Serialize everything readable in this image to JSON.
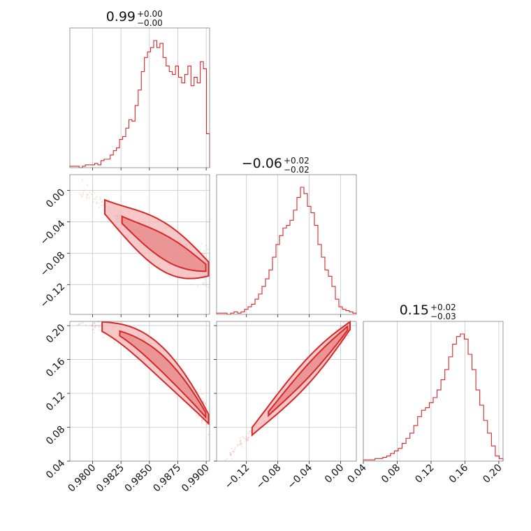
{
  "chart_data": {
    "type": "corner",
    "color": "#d62728",
    "parameters": [
      {
        "median": "0.99",
        "plus": "+0.00",
        "minus": "−0.00",
        "range": [
          0.978,
          0.9903
        ],
        "ticks": [
          0.98,
          0.9825,
          0.985,
          0.9875,
          0.99
        ],
        "tick_labels": [
          "0.9800",
          "0.9825",
          "0.9850",
          "0.9875",
          "0.9900"
        ]
      },
      {
        "median": "−0.06",
        "plus": "+0.02",
        "minus": "−0.02",
        "range": [
          -0.158,
          0.02
        ],
        "ticks": [
          -0.12,
          -0.08,
          -0.04,
          0.0
        ],
        "tick_labels": [
          "−0.12",
          "−0.08",
          "−0.04",
          "0.00"
        ]
      },
      {
        "median": "0.15",
        "plus": "+0.02",
        "minus": "−0.03",
        "range": [
          0.04,
          0.205
        ],
        "ticks": [
          0.04,
          0.08,
          0.12,
          0.16,
          0.2
        ],
        "tick_labels": [
          "0.04",
          "0.08",
          "0.12",
          "0.16",
          "0.20"
        ]
      }
    ],
    "histograms": [
      {
        "counts": [
          1,
          1,
          1,
          0,
          1,
          2,
          2,
          2,
          3,
          2,
          5,
          6,
          6,
          9,
          12,
          14,
          20,
          22,
          28,
          34,
          33,
          44,
          55,
          68,
          78,
          82,
          85,
          90,
          85,
          88,
          78,
          72,
          68,
          66,
          72,
          64,
          60,
          66,
          72,
          58,
          64,
          60,
          75,
          70,
          24
        ]
      },
      {
        "counts": [
          1,
          1,
          1,
          0,
          1,
          2,
          1,
          2,
          4,
          6,
          8,
          12,
          16,
          22,
          28,
          35,
          45,
          55,
          62,
          68,
          70,
          74,
          82,
          92,
          100,
          95,
          85,
          80,
          70,
          55,
          45,
          35,
          30,
          22,
          12,
          6,
          4,
          3,
          2,
          1
        ]
      },
      {
        "counts": [
          1,
          1,
          1,
          2,
          2,
          3,
          4,
          6,
          8,
          10,
          14,
          18,
          22,
          28,
          35,
          40,
          42,
          46,
          50,
          56,
          64,
          72,
          82,
          92,
          98,
          100,
          96,
          84,
          72,
          56,
          44,
          32,
          22,
          12,
          4,
          2
        ]
      }
    ],
    "scatter_2d": [
      {
        "panel": "p1_vs_p0",
        "relation": "p1 falls as p0 rises",
        "x_start": 0.9785,
        "x_end": 0.9902,
        "y_start": 0.01,
        "y_end": -0.1,
        "curvature": -0.01,
        "spread": 0.016
      },
      {
        "panel": "p2_vs_p0",
        "relation": "p2 falls as p0 rises",
        "x_start": 0.9782,
        "x_end": 0.9902,
        "y_start": 0.203,
        "y_end": 0.09,
        "curvature": 0.03,
        "spread": 0.01
      },
      {
        "panel": "p2_vs_p1",
        "relation": "p2 rises with p1",
        "x_start": -0.148,
        "x_end": 0.012,
        "y_start": 0.04,
        "y_end": 0.2,
        "curvature": 0.0,
        "spread": 0.008
      }
    ]
  }
}
